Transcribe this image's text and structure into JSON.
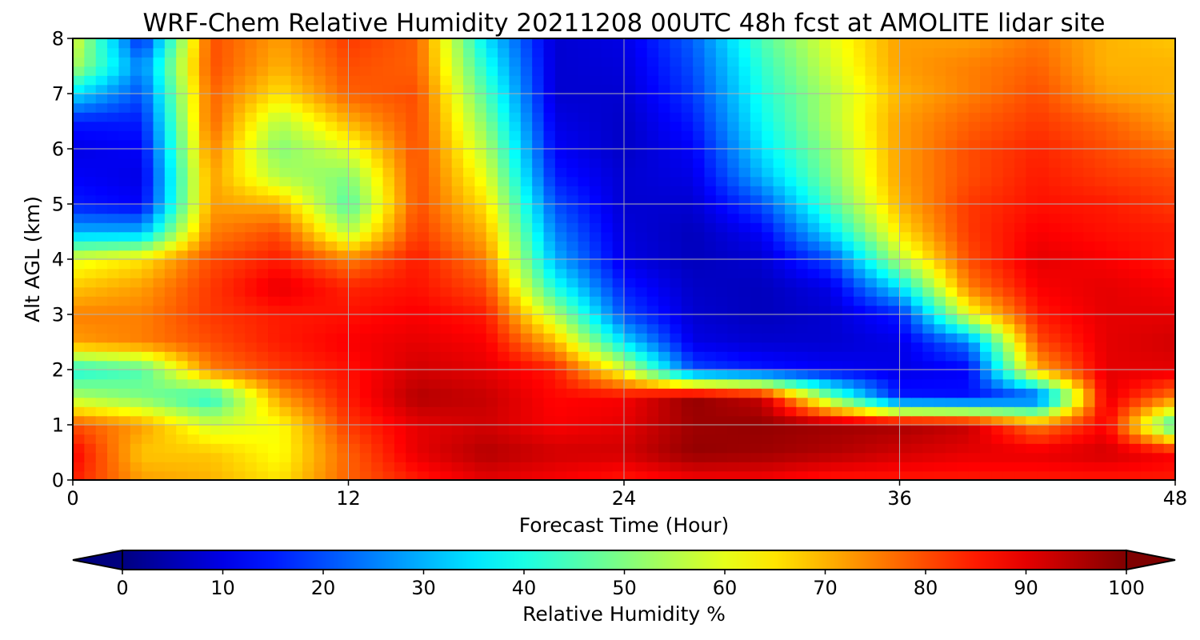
{
  "chart_data": {
    "type": "heatmap",
    "title": "WRF-Chem Relative Humidity 20211208 00UTC 48h fcst at AMOLITE lidar site",
    "xlabel": "Forecast Time (Hour)",
    "ylabel": "Alt AGL (km)",
    "xlim": [
      0,
      48
    ],
    "ylim": [
      0,
      8
    ],
    "xticks": [
      0,
      12,
      24,
      36,
      48
    ],
    "yticks": [
      0,
      1,
      2,
      3,
      4,
      5,
      6,
      7,
      8
    ],
    "grid": true,
    "colormap": "jet",
    "colorbar": {
      "label": "Relative Humidity %",
      "range": [
        0,
        100
      ],
      "ticks": [
        0,
        10,
        20,
        30,
        40,
        50,
        60,
        70,
        80,
        90,
        100
      ],
      "extend": "both",
      "orientation": "horizontal"
    },
    "x": [
      0,
      3,
      6,
      9,
      12,
      15,
      18,
      21,
      24,
      27,
      30,
      33,
      36,
      39,
      42,
      45,
      48
    ],
    "y": [
      0,
      0.5,
      1,
      1.5,
      2,
      2.5,
      3,
      3.5,
      4,
      4.5,
      5,
      5.5,
      6,
      6.5,
      7,
      7.5,
      8
    ],
    "z": [
      [
        85,
        72,
        70,
        65,
        78,
        85,
        90,
        88,
        85,
        88,
        88,
        85,
        85,
        85,
        85,
        85,
        85
      ],
      [
        88,
        68,
        68,
        62,
        78,
        90,
        95,
        92,
        92,
        98,
        97,
        95,
        92,
        90,
        90,
        92,
        88
      ],
      [
        80,
        72,
        58,
        62,
        82,
        90,
        92,
        88,
        90,
        97,
        98,
        97,
        96,
        93,
        75,
        88,
        40
      ],
      [
        55,
        50,
        40,
        72,
        85,
        95,
        93,
        87,
        88,
        98,
        93,
        50,
        15,
        14,
        18,
        90,
        75
      ],
      [
        40,
        45,
        75,
        82,
        86,
        92,
        90,
        85,
        60,
        20,
        15,
        12,
        10,
        12,
        70,
        90,
        90
      ],
      [
        72,
        75,
        80,
        85,
        88,
        90,
        88,
        70,
        35,
        10,
        8,
        8,
        10,
        25,
        80,
        90,
        92
      ],
      [
        75,
        75,
        82,
        85,
        86,
        88,
        85,
        55,
        20,
        8,
        6,
        8,
        15,
        60,
        85,
        90,
        90
      ],
      [
        68,
        72,
        82,
        90,
        84,
        86,
        80,
        40,
        15,
        7,
        6,
        10,
        35,
        75,
        88,
        90,
        88
      ],
      [
        60,
        65,
        80,
        85,
        75,
        85,
        75,
        30,
        10,
        6,
        8,
        20,
        55,
        80,
        90,
        88,
        85
      ],
      [
        30,
        30,
        75,
        80,
        55,
        82,
        70,
        25,
        9,
        6,
        12,
        35,
        65,
        82,
        88,
        86,
        85
      ],
      [
        15,
        12,
        72,
        70,
        45,
        80,
        65,
        20,
        8,
        8,
        20,
        45,
        70,
        82,
        86,
        85,
        82
      ],
      [
        12,
        10,
        72,
        55,
        50,
        80,
        60,
        15,
        8,
        10,
        30,
        50,
        72,
        80,
        85,
        82,
        80
      ],
      [
        10,
        12,
        75,
        50,
        60,
        80,
        55,
        12,
        7,
        12,
        35,
        52,
        72,
        80,
        84,
        80,
        76
      ],
      [
        15,
        15,
        78,
        55,
        70,
        80,
        50,
        10,
        7,
        15,
        38,
        55,
        72,
        78,
        82,
        78,
        72
      ],
      [
        35,
        20,
        78,
        65,
        78,
        80,
        45,
        8,
        8,
        18,
        40,
        55,
        70,
        75,
        80,
        72,
        70
      ],
      [
        55,
        25,
        80,
        70,
        80,
        78,
        40,
        8,
        9,
        20,
        42,
        58,
        72,
        75,
        78,
        70,
        70
      ],
      [
        60,
        15,
        80,
        72,
        82,
        78,
        35,
        8,
        10,
        22,
        45,
        60,
        72,
        72,
        76,
        70,
        68
      ]
    ]
  }
}
